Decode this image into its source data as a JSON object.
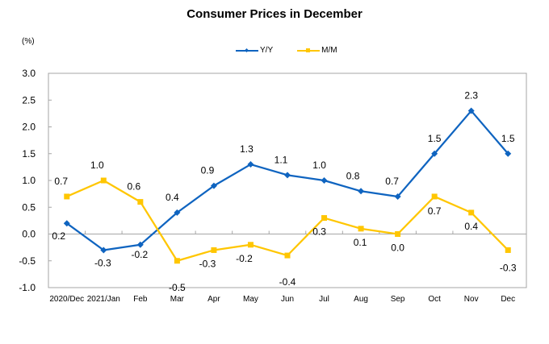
{
  "chart_data": {
    "type": "line",
    "title": "Consumer Prices in December",
    "ylabel": "(%)",
    "xlabel": "",
    "ylim": [
      -1.0,
      3.0
    ],
    "ytick_step": 0.5,
    "yticks": [
      "3.0",
      "2.5",
      "2.0",
      "1.5",
      "1.0",
      "0.5",
      "0.0",
      "-0.5",
      "-1.0"
    ],
    "grid": false,
    "legend_position": "top-center",
    "categories": [
      "2020/Dec",
      "2021/Jan",
      "Feb",
      "Mar",
      "Apr",
      "May",
      "Jun",
      "Jul",
      "Aug",
      "Sep",
      "Oct",
      "Nov",
      "Dec"
    ],
    "series": [
      {
        "name": "Y/Y",
        "color": "#0F64C0",
        "marker": "diamond",
        "values": [
          0.2,
          -0.3,
          -0.2,
          0.4,
          0.9,
          1.3,
          1.1,
          1.0,
          0.8,
          0.7,
          1.5,
          2.3,
          1.5
        ],
        "labels": [
          "0.2",
          "-0.3",
          "-0.2",
          "0.4",
          "0.9",
          "1.3",
          "1.1",
          "1.0",
          "0.8",
          "0.7",
          "1.5",
          "2.3",
          "1.5"
        ]
      },
      {
        "name": "M/M",
        "color": "#FFC600",
        "marker": "square",
        "values": [
          0.7,
          1.0,
          0.6,
          -0.5,
          -0.3,
          -0.2,
          -0.4,
          0.3,
          0.1,
          0.0,
          0.7,
          0.4,
          -0.3
        ],
        "labels": [
          "0.7",
          "1.0",
          "0.6",
          "-0.5",
          "-0.3",
          "-0.2",
          "-0.4",
          "0.3",
          "0.1",
          "0.0",
          "0.7",
          "0.4",
          "-0.3"
        ]
      }
    ]
  },
  "legend": {
    "yy_label": "Y/Y",
    "mm_label": "M/M"
  },
  "colors": {
    "axis": "#A6A6A6"
  }
}
